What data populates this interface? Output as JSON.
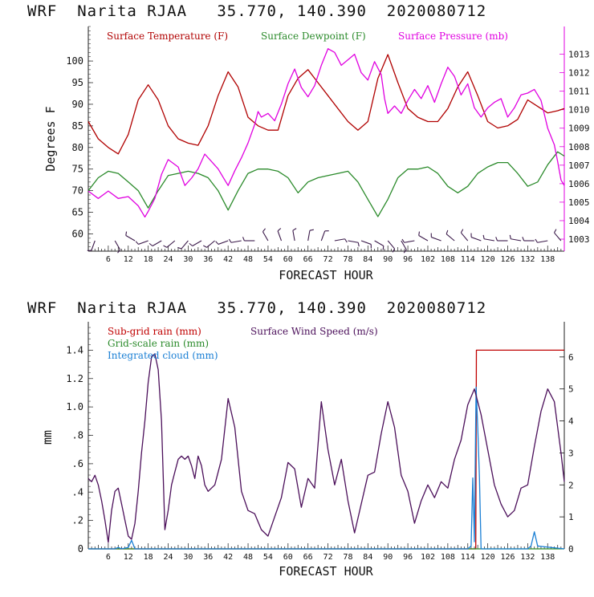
{
  "chart_data": [
    {
      "type": "line",
      "title": "WRF  Narita RJAA   35.770, 140.390  2020080712",
      "xlabel": "FORECAST HOUR",
      "ylabel": "Degrees F",
      "ylabel_right": "",
      "xlim": [
        0,
        143
      ],
      "ylim": [
        56,
        108
      ],
      "ylim_right": [
        1002.35,
        1014.5
      ],
      "x_ticks": [
        6,
        12,
        18,
        24,
        30,
        36,
        42,
        48,
        54,
        60,
        66,
        72,
        78,
        84,
        90,
        96,
        102,
        108,
        114,
        120,
        126,
        132,
        138
      ],
      "y_ticks": [
        60,
        65,
        70,
        75,
        80,
        85,
        90,
        95,
        100
      ],
      "y_ticks_right": [
        1003,
        1004,
        1005,
        1006,
        1007,
        1008,
        1009,
        1010,
        1011,
        1012,
        1013
      ],
      "series": [
        {
          "name": "Surface Temperature (F)",
          "color": "#b00000",
          "axis": "left",
          "x": [
            0,
            3,
            6,
            9,
            12,
            15,
            18,
            21,
            24,
            27,
            30,
            33,
            36,
            39,
            42,
            45,
            48,
            51,
            54,
            57,
            60,
            63,
            66,
            69,
            72,
            75,
            78,
            81,
            84,
            87,
            90,
            93,
            96,
            99,
            102,
            105,
            108,
            111,
            114,
            117,
            120,
            123,
            126,
            129,
            132,
            135,
            138,
            141,
            143
          ],
          "y": [
            86,
            82,
            80,
            78.5,
            83,
            91,
            94.5,
            91,
            85,
            82,
            81,
            80.5,
            85,
            92,
            97.5,
            94,
            87,
            85,
            84,
            84,
            92,
            96,
            98,
            95,
            92,
            89,
            86,
            84,
            86,
            96,
            101.5,
            95,
            89,
            87,
            86,
            86,
            89,
            94,
            97.5,
            92,
            86,
            84.5,
            85,
            86.5,
            91,
            89.5,
            88,
            88.5,
            89
          ]
        },
        {
          "name": "Surface Dewpoint (F)",
          "color": "#2a8a2a",
          "axis": "left",
          "x": [
            0,
            3,
            6,
            9,
            12,
            15,
            18,
            21,
            24,
            27,
            30,
            33,
            36,
            39,
            42,
            45,
            48,
            51,
            54,
            57,
            60,
            63,
            66,
            69,
            72,
            75,
            78,
            81,
            84,
            87,
            90,
            93,
            96,
            99,
            102,
            105,
            108,
            111,
            114,
            117,
            120,
            123,
            126,
            129,
            132,
            135,
            138,
            141,
            143
          ],
          "y": [
            70,
            73,
            74.5,
            74,
            72,
            70,
            66,
            70,
            73.5,
            74,
            74.5,
            74,
            73,
            70,
            65.5,
            70,
            74,
            75,
            75,
            74.5,
            73,
            69.5,
            72,
            73,
            73.5,
            74,
            74.5,
            72,
            68,
            64,
            68,
            73,
            75,
            75,
            75.5,
            74,
            71,
            69.5,
            71,
            74,
            75.5,
            76.5,
            76.5,
            74,
            71,
            72,
            76,
            79,
            78
          ]
        },
        {
          "name": "Surface Pressure (mb)",
          "color": "#e000e0",
          "axis": "right",
          "x": [
            0,
            3,
            6,
            9,
            12,
            15,
            17,
            18,
            20,
            22,
            24,
            27,
            29,
            31,
            33,
            35,
            37,
            39,
            41,
            42,
            44,
            46,
            48,
            50,
            51,
            52,
            54,
            56,
            58,
            60,
            62,
            64,
            66,
            68,
            70,
            72,
            74,
            76,
            78,
            80,
            82,
            84,
            86,
            88,
            89,
            90,
            92,
            94,
            96,
            98,
            100,
            102,
            104,
            106,
            108,
            110,
            112,
            114,
            116,
            118,
            120,
            122,
            124,
            126,
            128,
            130,
            132,
            134,
            136,
            138,
            140,
            141,
            142,
            143
          ],
          "y": [
            1005.6,
            1005.2,
            1005.6,
            1005.2,
            1005.3,
            1004.8,
            1004.2,
            1004.5,
            1005.2,
            1006.5,
            1007.3,
            1006.9,
            1005.9,
            1006.3,
            1006.8,
            1007.6,
            1007.2,
            1006.8,
            1006.2,
            1005.9,
            1006.7,
            1007.4,
            1008.2,
            1009.2,
            1009.9,
            1009.6,
            1009.8,
            1009.4,
            1010.3,
            1011.4,
            1012.2,
            1011.2,
            1010.7,
            1011.3,
            1012.4,
            1013.3,
            1013.1,
            1012.4,
            1012.7,
            1013.0,
            1012.0,
            1011.6,
            1012.6,
            1011.9,
            1010.6,
            1009.8,
            1010.2,
            1009.8,
            1010.5,
            1011.1,
            1010.6,
            1011.3,
            1010.4,
            1011.4,
            1012.3,
            1011.8,
            1010.8,
            1011.4,
            1010.1,
            1009.6,
            1010.1,
            1010.4,
            1010.6,
            1009.6,
            1010.1,
            1010.8,
            1010.9,
            1011.1,
            1010.5,
            1009.0,
            1008.1,
            1007.2,
            1006.2,
            1005.9
          ]
        }
      ]
    },
    {
      "type": "line",
      "title": "WRF  Narita RJAA   35.770, 140.390  2020080712",
      "xlabel": "FORECAST HOUR",
      "ylabel": "mm",
      "xlim": [
        0,
        143
      ],
      "ylim": [
        0,
        1.6
      ],
      "ylim_right": [
        0,
        7.1
      ],
      "x_ticks": [
        6,
        12,
        18,
        24,
        30,
        36,
        42,
        48,
        54,
        60,
        66,
        72,
        78,
        84,
        90,
        96,
        102,
        108,
        114,
        120,
        126,
        132,
        138
      ],
      "y_ticks": [
        0,
        0.2,
        0.4,
        0.6,
        0.8,
        1.0,
        1.2,
        1.4
      ],
      "y_tick_labels": [
        "0",
        ".2",
        ".4",
        ".6",
        ".8",
        "1.0",
        "1.2",
        "1.4"
      ],
      "y_ticks_right": [
        0,
        1,
        2,
        3,
        4,
        5,
        6
      ],
      "series": [
        {
          "name": "Sub-grid rain (mm)",
          "color": "#c00000",
          "axis": "left",
          "x": [
            0,
            116.4,
            116.6,
            143
          ],
          "y": [
            0,
            0,
            1.4,
            1.4
          ]
        },
        {
          "name": "Grid-scale rain (mm)",
          "color": "#2a8a2a",
          "axis": "left",
          "x": [
            0,
            143
          ],
          "y": [
            0,
            0
          ]
        },
        {
          "name": "Integrated cloud (mm)",
          "color": "#1a7fd4",
          "axis": "left",
          "x": [
            0,
            8,
            9,
            10,
            12,
            13,
            14,
            114,
            115,
            115.5,
            116,
            116.5,
            117,
            117.5,
            118,
            132,
            133,
            133.5,
            134,
            135,
            143
          ],
          "y": [
            0,
            0,
            0.01,
            0,
            0.01,
            0.06,
            0,
            0,
            0.02,
            0.5,
            0.05,
            1.14,
            0.85,
            0.5,
            0,
            0,
            0.02,
            0.07,
            0.12,
            0.02,
            0
          ]
        },
        {
          "name": "Surface Wind Speed (m/s)",
          "color": "#4b0f5a",
          "axis": "right",
          "x": [
            0,
            1,
            2,
            3,
            4,
            5,
            6,
            7,
            8,
            9,
            10,
            11,
            12,
            13,
            14,
            15,
            16,
            17,
            18,
            19,
            20,
            21,
            22,
            23,
            24,
            25,
            26,
            27,
            28,
            29,
            30,
            31,
            32,
            33,
            34,
            35,
            36,
            38,
            40,
            42,
            44,
            46,
            48,
            50,
            52,
            54,
            56,
            58,
            60,
            62,
            64,
            66,
            68,
            70,
            72,
            74,
            76,
            78,
            80,
            82,
            84,
            86,
            88,
            90,
            92,
            94,
            96,
            98,
            100,
            102,
            104,
            106,
            108,
            110,
            112,
            114,
            116,
            118,
            120,
            122,
            124,
            126,
            128,
            130,
            132,
            134,
            136,
            138,
            140,
            142,
            143
          ],
          "y": [
            2.2,
            2.1,
            2.3,
            2.0,
            1.5,
            0.9,
            0.2,
            1.2,
            1.8,
            1.9,
            1.4,
            0.9,
            0.4,
            0.3,
            0.8,
            1.8,
            3.0,
            4.0,
            5.2,
            6.0,
            6.1,
            5.6,
            4.0,
            0.6,
            1.2,
            2.0,
            2.4,
            2.8,
            2.9,
            2.8,
            2.9,
            2.6,
            2.2,
            2.9,
            2.6,
            2.0,
            1.8,
            2.0,
            2.8,
            4.7,
            3.8,
            1.8,
            1.2,
            1.1,
            0.6,
            0.4,
            1.0,
            1.6,
            2.7,
            2.5,
            1.3,
            2.2,
            1.9,
            4.6,
            3.1,
            2.0,
            2.8,
            1.5,
            0.5,
            1.4,
            2.3,
            2.4,
            3.6,
            4.6,
            3.8,
            2.3,
            1.8,
            0.8,
            1.5,
            2.0,
            1.6,
            2.1,
            1.9,
            2.8,
            3.4,
            4.5,
            5.0,
            4.2,
            3.1,
            2.0,
            1.4,
            1.0,
            1.2,
            1.9,
            2.0,
            3.2,
            4.3,
            5.0,
            4.6,
            3.0,
            2.1
          ]
        }
      ]
    }
  ],
  "panels": {
    "top": {
      "title": "WRF  Narita RJAA   35.770, 140.390  2020080712",
      "ylabel": "Degrees F",
      "xlabel": "FORECAST HOUR",
      "legend": [
        "Surface Temperature (F)",
        "Surface Dewpoint (F)",
        "Surface Pressure (mb)"
      ]
    },
    "bottom": {
      "title": "WRF  Narita RJAA   35.770, 140.390  2020080712",
      "ylabel": "mm",
      "xlabel": "FORECAST HOUR",
      "legend": [
        "Sub-grid rain (mm)",
        "Surface Wind Speed (m/s)",
        "Grid-scale rain (mm)",
        "Integrated cloud (mm)"
      ]
    }
  },
  "colors": {
    "temperature": "#b00000",
    "dewpoint": "#2a8a2a",
    "pressure": "#e000e0",
    "subgrid": "#c00000",
    "gridscale": "#2a8a2a",
    "cloud": "#1a7fd4",
    "wind": "#4b0f5a",
    "wind_barb": "#3b1a4a"
  },
  "wind_barbs": {
    "x": [
      2,
      8,
      14,
      18,
      22,
      26,
      30,
      34,
      38,
      42,
      46,
      50,
      54,
      58,
      62,
      66,
      70,
      74,
      78,
      82,
      86,
      90,
      94,
      98,
      102,
      106,
      110,
      114,
      118,
      122,
      126,
      130,
      134,
      138,
      142
    ],
    "direction_deg": [
      200,
      150,
      300,
      250,
      240,
      230,
      220,
      240,
      230,
      250,
      260,
      270,
      330,
      340,
      350,
      10,
      20,
      80,
      100,
      110,
      120,
      140,
      150,
      260,
      300,
      290,
      310,
      320,
      290,
      280,
      270,
      280,
      270,
      260,
      320
    ]
  }
}
